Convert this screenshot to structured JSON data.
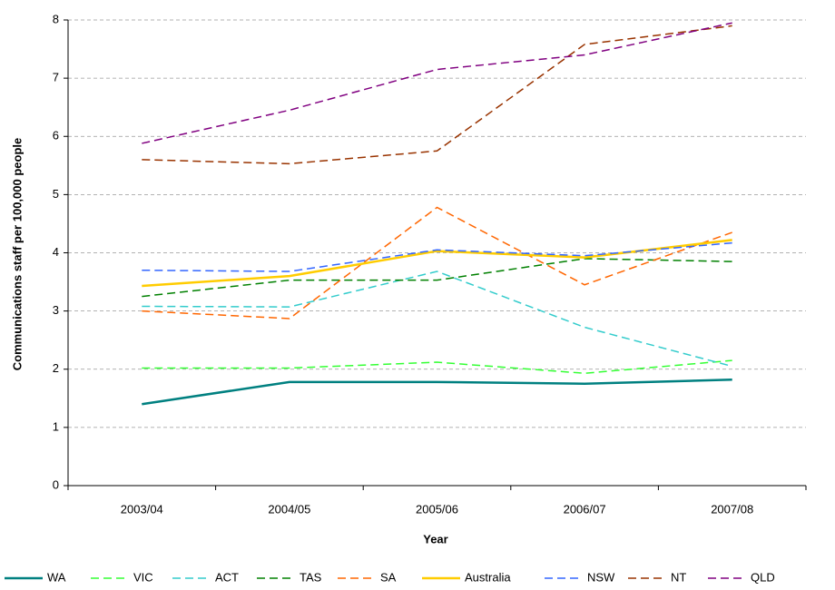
{
  "chart_data": {
    "type": "line",
    "x_label": "Year",
    "y_label": "Communications staff per 100,000 people",
    "categories": [
      "2003/04",
      "2004/05",
      "2005/06",
      "2006/07",
      "2007/08"
    ],
    "ylim": [
      0,
      8
    ],
    "yticks": [
      0,
      1,
      2,
      3,
      4,
      5,
      6,
      7,
      8
    ],
    "grid": true,
    "legend": "bottom",
    "series": [
      {
        "name": "WA",
        "color": "#008080",
        "line_style": "solid",
        "values": [
          1.4,
          1.78,
          1.78,
          1.75,
          1.82
        ]
      },
      {
        "name": "VIC",
        "color": "#33ff33",
        "line_style": "dashed",
        "values": [
          2.02,
          2.02,
          2.12,
          1.93,
          2.15
        ]
      },
      {
        "name": "ACT",
        "color": "#33cccc",
        "line_style": "dashed",
        "values": [
          3.08,
          3.07,
          3.68,
          2.72,
          2.05
        ]
      },
      {
        "name": "TAS",
        "color": "#008000",
        "line_style": "dashed",
        "values": [
          3.25,
          3.53,
          3.53,
          3.9,
          3.85
        ]
      },
      {
        "name": "SA",
        "color": "#ff6600",
        "line_style": "dashed",
        "values": [
          3.0,
          2.87,
          4.78,
          3.45,
          4.35
        ]
      },
      {
        "name": "Australia",
        "color": "#ffcc00",
        "line_style": "solid",
        "values": [
          3.43,
          3.6,
          4.03,
          3.92,
          4.22
        ]
      },
      {
        "name": "NSW",
        "color": "#3366ff",
        "line_style": "dashed",
        "values": [
          3.7,
          3.68,
          4.05,
          3.95,
          4.17
        ]
      },
      {
        "name": "NT",
        "color": "#993300",
        "line_style": "dashed",
        "values": [
          5.6,
          5.53,
          5.75,
          7.58,
          7.9
        ]
      },
      {
        "name": "QLD",
        "color": "#800080",
        "line_style": "dashed",
        "values": [
          5.88,
          6.45,
          7.15,
          7.4,
          7.95
        ]
      }
    ]
  }
}
